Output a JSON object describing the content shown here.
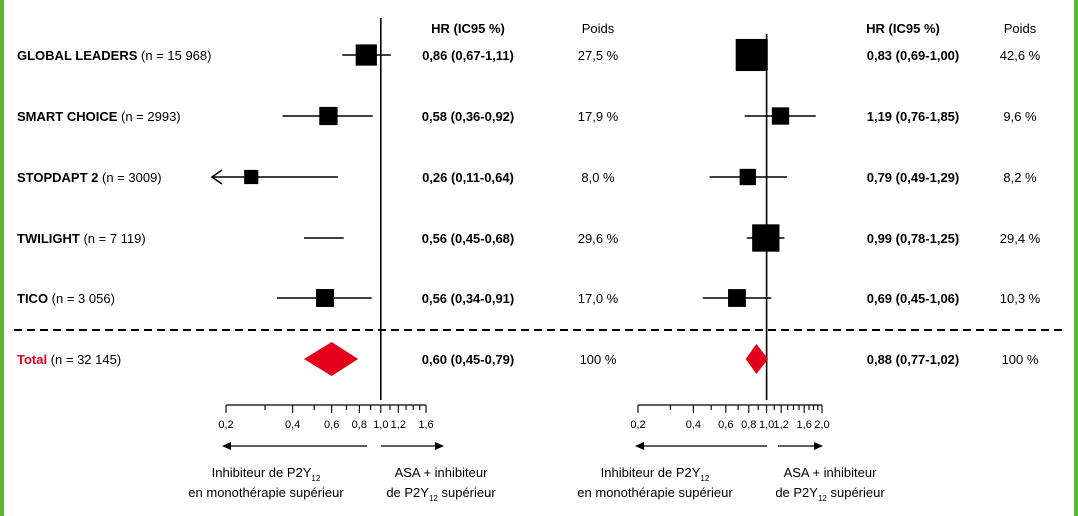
{
  "headers": {
    "hr_left": "HR (IC95 %)",
    "weight_left": "Poids",
    "hr_right": "HR (IC95 %)",
    "weight_right": "Poids"
  },
  "studies": [
    {
      "name": "GLOBAL LEADERS",
      "n": "(n = 15 968)",
      "left_text": "0,86 (0,67-1,11)",
      "left_weight": "27,5 %",
      "right_text": "0,83 (0,69-1,00)",
      "right_weight": "42,6 %"
    },
    {
      "name": "SMART CHOICE",
      "n": "(n = 2993)",
      "left_text": "0,58 (0,36-0,92)",
      "left_weight": "17,9 %",
      "right_text": "1,19 (0,76-1,85)",
      "right_weight": "9,6 %"
    },
    {
      "name": "STOPDAPT 2",
      "n": "(n = 3009)",
      "left_text": "0,26 (0,11-0,64)",
      "left_weight": "8,0 %",
      "right_text": "0,79 (0,49-1,29)",
      "right_weight": "8,2 %"
    },
    {
      "name": "TWILIGHT",
      "n": "(n = 7 119)",
      "left_text": "0,56 (0,45-0,68)",
      "left_weight": "29,6 %",
      "right_text": "0,99 (0,78-1,25)",
      "right_weight": "29,4 %"
    },
    {
      "name": "TICO",
      "n": "(n = 3 056)",
      "left_text": "0,56 (0,34-0,91)",
      "left_weight": "17,0 %",
      "right_text": "0,69 (0,45-1,06)",
      "right_weight": "10,3 %"
    }
  ],
  "total": {
    "name": "Total",
    "n": "(n = 32 145)",
    "left_text": "0,60 (0,45-0,79)",
    "left_weight": "100 %",
    "right_text": "0,88 (0,77-1,02)",
    "right_weight": "100 %"
  },
  "axis_left": {
    "ticks": [
      "0,2",
      "0,4",
      "0,6",
      "0,8",
      "1,0",
      "1,2",
      "1,6"
    ]
  },
  "axis_right": {
    "ticks": [
      "0,2",
      "0,4",
      "0,6",
      "0,8",
      "1,0",
      "1,2",
      "1,6",
      "2,0"
    ]
  },
  "direction": {
    "left_l1": "Inhibiteur de P2Y",
    "left_sub": "12",
    "left_l2": "en monothérapie supérieur",
    "right_l1": "ASA + inhibiteur",
    "right_l2a": "de P2Y",
    "right_sub": "12",
    "right_l2b": " supérieur"
  },
  "colors": {
    "total": "#e2001a",
    "marker": "#000000"
  },
  "chart_data": [
    {
      "type": "forest",
      "scale": "log",
      "reference_line": 1.0,
      "xticks": [
        0.2,
        0.4,
        0.6,
        0.8,
        1.0,
        1.2,
        1.6
      ],
      "xlim": [
        0.2,
        1.6
      ],
      "column_headers": [
        "HR (IC95 %)",
        "Poids"
      ],
      "studies": [
        {
          "name": "GLOBAL LEADERS",
          "n": 15968,
          "hr": 0.86,
          "ci": [
            0.67,
            1.11
          ],
          "weight": 27.5
        },
        {
          "name": "SMART CHOICE",
          "n": 2993,
          "hr": 0.58,
          "ci": [
            0.36,
            0.92
          ],
          "weight": 17.9
        },
        {
          "name": "STOPDAPT 2",
          "n": 3009,
          "hr": 0.26,
          "ci": [
            0.11,
            0.64
          ],
          "weight": 8.0
        },
        {
          "name": "TWILIGHT",
          "n": 7119,
          "hr": 0.56,
          "ci": [
            0.45,
            0.68
          ],
          "weight": 29.6
        },
        {
          "name": "TICO",
          "n": 3056,
          "hr": 0.56,
          "ci": [
            0.34,
            0.91
          ],
          "weight": 17.0
        }
      ],
      "total": {
        "name": "Total",
        "n": 32145,
        "hr": 0.6,
        "ci": [
          0.45,
          0.79
        ],
        "weight": 100
      }
    },
    {
      "type": "forest",
      "scale": "log",
      "reference_line": 1.0,
      "xticks": [
        0.2,
        0.4,
        0.6,
        0.8,
        1.0,
        1.2,
        1.6,
        2.0
      ],
      "xlim": [
        0.2,
        2.0
      ],
      "column_headers": [
        "HR (IC95 %)",
        "Poids"
      ],
      "studies": [
        {
          "name": "GLOBAL LEADERS",
          "n": 15968,
          "hr": 0.83,
          "ci": [
            0.69,
            1.0
          ],
          "weight": 42.6
        },
        {
          "name": "SMART CHOICE",
          "n": 2993,
          "hr": 1.19,
          "ci": [
            0.76,
            1.85
          ],
          "weight": 9.6
        },
        {
          "name": "STOPDAPT 2",
          "n": 3009,
          "hr": 0.79,
          "ci": [
            0.49,
            1.29
          ],
          "weight": 8.2
        },
        {
          "name": "TWILIGHT",
          "n": 7119,
          "hr": 0.99,
          "ci": [
            0.78,
            1.25
          ],
          "weight": 29.4
        },
        {
          "name": "TICO",
          "n": 3056,
          "hr": 0.69,
          "ci": [
            0.45,
            1.06
          ],
          "weight": 10.3
        }
      ],
      "total": {
        "name": "Total",
        "n": 32145,
        "hr": 0.88,
        "ci": [
          0.77,
          1.02
        ],
        "weight": 100
      }
    }
  ]
}
